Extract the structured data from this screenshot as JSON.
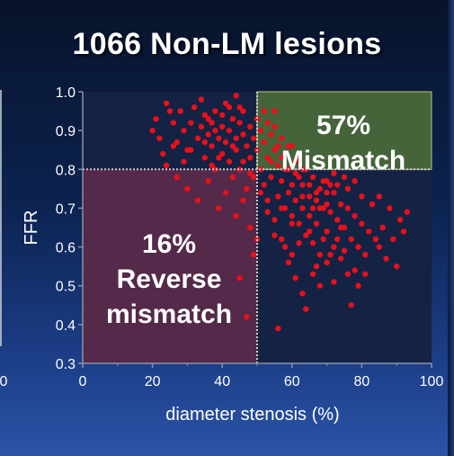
{
  "title": "1066 Non-LM lesions",
  "chart_data": {
    "type": "scatter",
    "title": "1066 Non-LM lesions",
    "xlabel": "diameter stenosis (%)",
    "ylabel": "FFR",
    "xlim": [
      0,
      100
    ],
    "ylim": [
      0.3,
      1.0
    ],
    "x_ticks": [
      "0",
      "20",
      "40",
      "60",
      "80",
      "100"
    ],
    "y_ticks": [
      "0.3",
      "0.4",
      "0.5",
      "0.6",
      "0.7",
      "0.8",
      "0.9",
      "1.0"
    ],
    "edge_tick_label": "0",
    "thresholds": {
      "x": 50,
      "y": 0.8
    },
    "grid": false,
    "colors": {
      "points": "#e8101a",
      "mismatch_region": "#4a6b3a",
      "reverse_mismatch_region": "#5b2a4a",
      "plot_background": "#142244",
      "threshold_line": "#c9c9c9"
    },
    "regions": [
      {
        "name": "mismatch",
        "percent": "57%",
        "label": "Mismatch",
        "x_range": [
          50,
          100
        ],
        "y_range": [
          0.8,
          1.0
        ]
      },
      {
        "name": "reverse-mismatch",
        "percent": "16%",
        "label_lines": [
          "Reverse",
          "mismatch"
        ],
        "x_range": [
          0,
          50
        ],
        "y_range": [
          0.3,
          0.8
        ]
      }
    ],
    "series": [
      {
        "points": [
          [
            20,
            0.9
          ],
          [
            21,
            0.93
          ],
          [
            22,
            0.88
          ],
          [
            24,
            0.97
          ],
          [
            26,
            0.92
          ],
          [
            27,
            0.87
          ],
          [
            28,
            0.95
          ],
          [
            29,
            0.9
          ],
          [
            30,
            0.85
          ],
          [
            31,
            0.92
          ],
          [
            32,
            0.96
          ],
          [
            33,
            0.88
          ],
          [
            34,
            0.91
          ],
          [
            35,
            0.94
          ],
          [
            35,
            0.83
          ],
          [
            36,
            0.89
          ],
          [
            37,
            0.92
          ],
          [
            37,
            0.86
          ],
          [
            38,
            0.95
          ],
          [
            38,
            0.8
          ],
          [
            39,
            0.88
          ],
          [
            40,
            0.91
          ],
          [
            40,
            0.84
          ],
          [
            41,
            0.97
          ],
          [
            41,
            0.87
          ],
          [
            42,
            0.9
          ],
          [
            42,
            0.82
          ],
          [
            43,
            0.93
          ],
          [
            43,
            0.78
          ],
          [
            44,
            0.88
          ],
          [
            44,
            0.85
          ],
          [
            45,
            0.92
          ],
          [
            45,
            0.8
          ],
          [
            46,
            0.89
          ],
          [
            46,
            0.95
          ],
          [
            47,
            0.86
          ],
          [
            47,
            0.75
          ],
          [
            48,
            0.91
          ],
          [
            48,
            0.83
          ],
          [
            49,
            0.88
          ],
          [
            49,
            0.78
          ],
          [
            50,
            0.93
          ],
          [
            50,
            0.85
          ],
          [
            51,
            0.9
          ],
          [
            51,
            0.8
          ],
          [
            52,
            0.87
          ],
          [
            52,
            0.76
          ],
          [
            53,
            0.92
          ],
          [
            53,
            0.83
          ],
          [
            54,
            0.89
          ],
          [
            54,
            0.78
          ],
          [
            55,
            0.95
          ],
          [
            55,
            0.85
          ],
          [
            56,
            0.81
          ],
          [
            56,
            0.73
          ],
          [
            57,
            0.88
          ],
          [
            57,
            0.77
          ],
          [
            58,
            0.84
          ],
          [
            58,
            0.7
          ],
          [
            59,
            0.8
          ],
          [
            59,
            0.74
          ],
          [
            60,
            0.86
          ],
          [
            60,
            0.68
          ],
          [
            61,
            0.79
          ],
          [
            61,
            0.72
          ],
          [
            62,
            0.83
          ],
          [
            62,
            0.66
          ],
          [
            63,
            0.76
          ],
          [
            63,
            0.7
          ],
          [
            64,
            0.8
          ],
          [
            64,
            0.63
          ],
          [
            65,
            0.73
          ],
          [
            65,
            0.68
          ],
          [
            66,
            0.78
          ],
          [
            66,
            0.61
          ],
          [
            67,
            0.72
          ],
          [
            67,
            0.66
          ],
          [
            68,
            0.75
          ],
          [
            68,
            0.58
          ],
          [
            69,
            0.7
          ],
          [
            70,
            0.77
          ],
          [
            70,
            0.64
          ],
          [
            71,
            0.69
          ],
          [
            72,
            0.74
          ],
          [
            72,
            0.6
          ],
          [
            73,
            0.67
          ],
          [
            74,
            0.71
          ],
          [
            74,
            0.57
          ],
          [
            75,
            0.65
          ],
          [
            76,
            0.7
          ],
          [
            77,
            0.62
          ],
          [
            78,
            0.68
          ],
          [
            78,
            0.54
          ],
          [
            79,
            0.6
          ],
          [
            80,
            0.66
          ],
          [
            81,
            0.58
          ],
          [
            82,
            0.64
          ],
          [
            83,
            0.71
          ],
          [
            84,
            0.62
          ],
          [
            85,
            0.73
          ],
          [
            86,
            0.65
          ],
          [
            88,
            0.7
          ],
          [
            89,
            0.62
          ],
          [
            91,
            0.67
          ],
          [
            92,
            0.64
          ],
          [
            93,
            0.69
          ],
          [
            87,
            0.57
          ],
          [
            90,
            0.55
          ],
          [
            24,
            0.81
          ],
          [
            27,
            0.78
          ],
          [
            30,
            0.75
          ],
          [
            33,
            0.72
          ],
          [
            36,
            0.77
          ],
          [
            39,
            0.7
          ],
          [
            41,
            0.74
          ],
          [
            44,
            0.68
          ],
          [
            46,
            0.72
          ],
          [
            48,
            0.65
          ],
          [
            49,
            0.58
          ],
          [
            47,
            0.42
          ],
          [
            45,
            0.52
          ],
          [
            50,
            0.62
          ],
          [
            53,
            0.72
          ],
          [
            55,
            0.67
          ],
          [
            57,
            0.62
          ],
          [
            59,
            0.56
          ],
          [
            61,
            0.52
          ],
          [
            63,
            0.48
          ],
          [
            64,
            0.44
          ],
          [
            66,
            0.53
          ],
          [
            68,
            0.5
          ],
          [
            70,
            0.56
          ],
          [
            72,
            0.51
          ],
          [
            75,
            0.59
          ],
          [
            76,
            0.53
          ],
          [
            77,
            0.45
          ],
          [
            79,
            0.5
          ],
          [
            81,
            0.53
          ],
          [
            56,
            0.39
          ],
          [
            58,
            0.6
          ],
          [
            60,
            0.58
          ],
          [
            62,
            0.61
          ],
          [
            67,
            0.55
          ],
          [
            69,
            0.62
          ],
          [
            71,
            0.58
          ],
          [
            73,
            0.62
          ],
          [
            74,
            0.65
          ],
          [
            85,
            0.6
          ],
          [
            60,
            0.76
          ],
          [
            62,
            0.78
          ],
          [
            65,
            0.76
          ],
          [
            66,
            0.7
          ],
          [
            67,
            0.74
          ],
          [
            69,
            0.77
          ],
          [
            70,
            0.71
          ],
          [
            71,
            0.76
          ],
          [
            72,
            0.79
          ],
          [
            73,
            0.76
          ],
          [
            75,
            0.78
          ],
          [
            76,
            0.75
          ],
          [
            78,
            0.77
          ],
          [
            80,
            0.73
          ],
          [
            54,
            0.82
          ],
          [
            56,
            0.86
          ],
          [
            58,
            0.8
          ],
          [
            52,
            0.95
          ],
          [
            55,
            0.91
          ],
          [
            57,
            0.83
          ],
          [
            59,
            0.86
          ],
          [
            61,
            0.82
          ],
          [
            63,
            0.8
          ],
          [
            34,
            0.98
          ],
          [
            36,
            0.93
          ],
          [
            38,
            0.9
          ],
          [
            40,
            0.94
          ],
          [
            42,
            0.96
          ],
          [
            44,
            0.99
          ],
          [
            43,
            0.86
          ],
          [
            39,
            0.83
          ],
          [
            37,
            0.81
          ],
          [
            35,
            0.87
          ],
          [
            31,
            0.85
          ],
          [
            29,
            0.82
          ],
          [
            26,
            0.86
          ],
          [
            23,
            0.84
          ],
          [
            25,
            0.95
          ],
          [
            45,
            0.96
          ],
          [
            46,
            0.82
          ],
          [
            48,
            0.79
          ],
          [
            51,
            0.74
          ],
          [
            53,
            0.69
          ],
          [
            55,
            0.63
          ],
          [
            57,
            0.7
          ],
          [
            60,
            0.66
          ],
          [
            63,
            0.73
          ],
          [
            65,
            0.64
          ],
          [
            68,
            0.7
          ],
          [
            70,
            0.74
          ]
        ]
      }
    ]
  }
}
